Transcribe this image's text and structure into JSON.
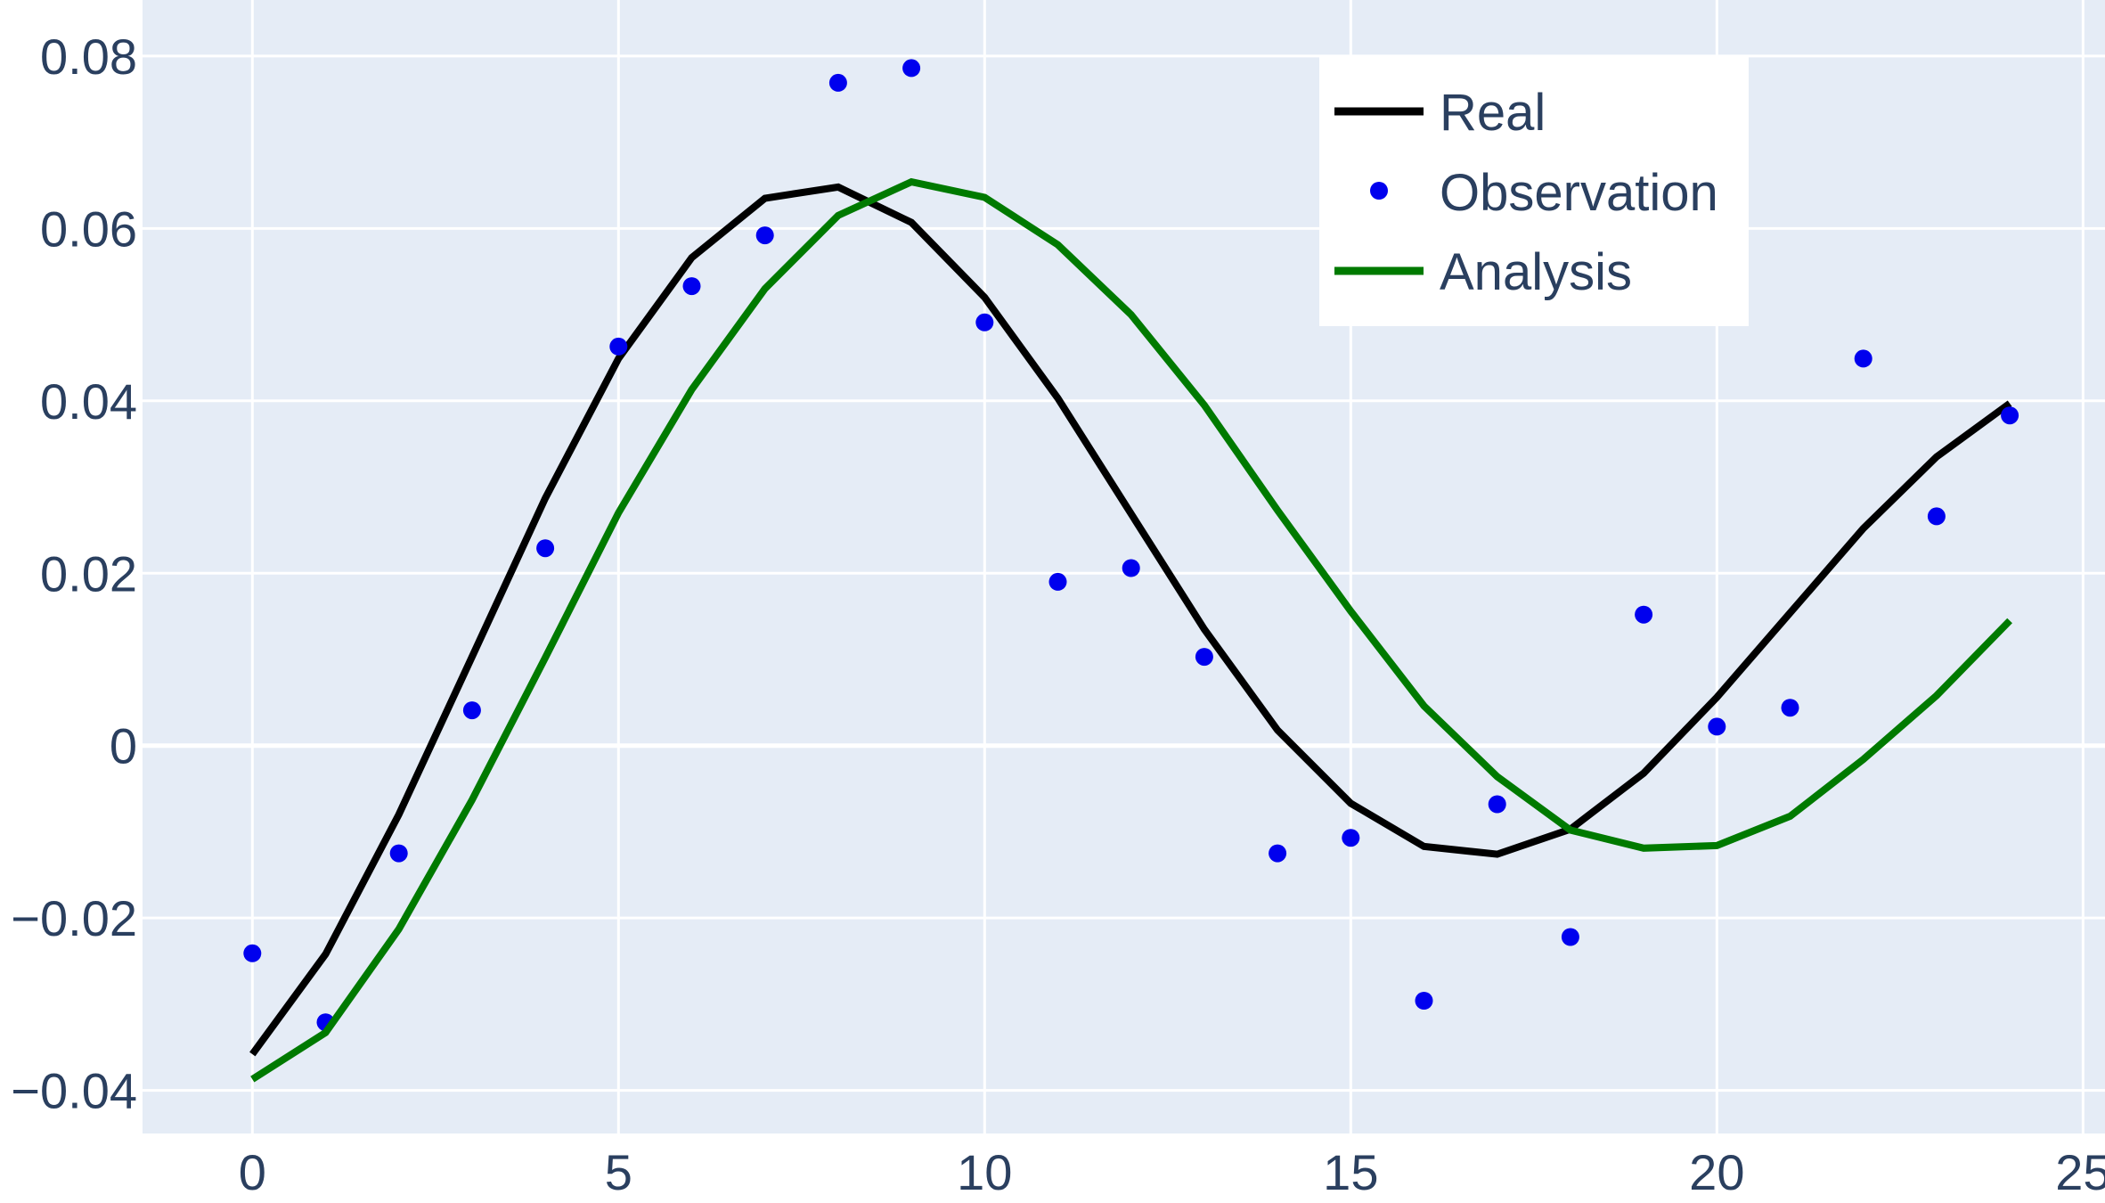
{
  "chart_data": {
    "type": "line",
    "title": "",
    "xlabel": "",
    "ylabel": "",
    "xlim": [
      -1.5,
      25.3
    ],
    "ylim": [
      -0.045,
      0.0865
    ],
    "x_ticks": [
      0,
      5,
      10,
      15,
      20,
      25
    ],
    "x_tick_labels": [
      "0",
      "5",
      "10",
      "15",
      "20",
      "25"
    ],
    "y_ticks": [
      -0.04,
      -0.02,
      0,
      0.02,
      0.04,
      0.06,
      0.08
    ],
    "y_tick_labels": [
      "−0.04",
      "−0.02",
      "0",
      "0.02",
      "0.04",
      "0.06",
      "0.08"
    ],
    "grid": true,
    "legend_position": "top-right",
    "background": "#e5ecf6",
    "series": [
      {
        "name": "Real",
        "mode": "lines",
        "color": "#000000",
        "x": [
          0,
          1,
          2,
          3,
          4,
          5,
          6,
          7,
          8,
          9,
          10,
          11,
          12,
          13,
          14,
          15,
          16,
          17,
          18,
          19,
          20,
          21,
          22,
          23,
          24
        ],
        "y": [
          -0.0358,
          -0.0242,
          -0.008,
          0.0103,
          0.0287,
          0.0449,
          0.0566,
          0.0635,
          0.0648,
          0.0607,
          0.052,
          0.0403,
          0.0269,
          0.0135,
          0.0018,
          -0.0067,
          -0.0117,
          -0.0126,
          -0.0097,
          -0.0032,
          0.0056,
          0.0154,
          0.0252,
          0.0335,
          0.0397
        ]
      },
      {
        "name": "Observation",
        "mode": "markers",
        "color": "#0000ee",
        "x": [
          0,
          1,
          2,
          3,
          4,
          5,
          6,
          7,
          8,
          9,
          10,
          11,
          12,
          13,
          14,
          15,
          16,
          17,
          18,
          19,
          20,
          21,
          22,
          23,
          24
        ],
        "y": [
          -0.0241,
          -0.0321,
          -0.0125,
          0.0041,
          0.0229,
          0.0463,
          0.0533,
          0.0592,
          0.0769,
          0.0786,
          0.0491,
          0.019,
          0.0206,
          0.0103,
          -0.0125,
          -0.0107,
          -0.0296,
          -0.0068,
          -0.0222,
          0.0152,
          0.0022,
          0.0044,
          0.0449,
          0.0266,
          0.0383
        ]
      },
      {
        "name": "Analysis",
        "mode": "lines",
        "color": "#007a00",
        "x": [
          0,
          1,
          2,
          3,
          4,
          5,
          6,
          7,
          8,
          9,
          10,
          11,
          12,
          13,
          14,
          15,
          16,
          17,
          18,
          19,
          20,
          21,
          22,
          23,
          24
        ],
        "y": [
          -0.0387,
          -0.0333,
          -0.0213,
          -0.0063,
          0.0102,
          0.027,
          0.0413,
          0.053,
          0.0615,
          0.0654,
          0.0636,
          0.0581,
          0.05,
          0.0395,
          0.0273,
          0.0156,
          0.0046,
          -0.0036,
          -0.0098,
          -0.0119,
          -0.0116,
          -0.0082,
          -0.0016,
          0.0058,
          0.0145
        ]
      }
    ]
  }
}
